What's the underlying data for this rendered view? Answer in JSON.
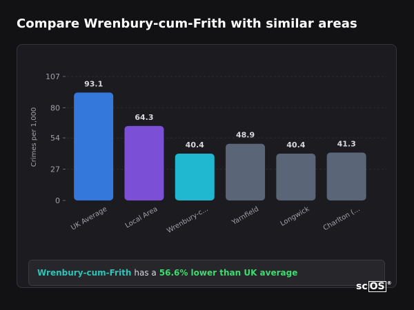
{
  "page": {
    "title": "Compare Wrenbury-cum-Frith with similar areas"
  },
  "summary": {
    "area": "Wrenbury-cum-Frith",
    "middle": "has a",
    "difference": "56.6% lower than UK average"
  },
  "logo": {
    "prefix": "sc",
    "boxed": "OS",
    "mark": "®"
  },
  "chart_data": {
    "type": "bar",
    "title": "",
    "xlabel": "",
    "ylabel": "Crimes per 1,000",
    "categories": [
      "UK Average",
      "Local Area",
      "Wrenbury-c...",
      "Yarnfield",
      "Longwick",
      "Charlton (..."
    ],
    "values": [
      93.1,
      64.3,
      40.4,
      48.9,
      40.4,
      41.3
    ],
    "value_labels": [
      "93.1",
      "64.3",
      "40.4",
      "48.9",
      "40.4",
      "41.3"
    ],
    "colors": [
      "#3578dc",
      "#7b4fd6",
      "#1fb8d0",
      "#5a6578",
      "#5a6578",
      "#5a6578"
    ],
    "yticks": [
      0,
      27,
      54,
      80,
      107
    ],
    "ylim": [
      0,
      107
    ],
    "grid": true
  }
}
